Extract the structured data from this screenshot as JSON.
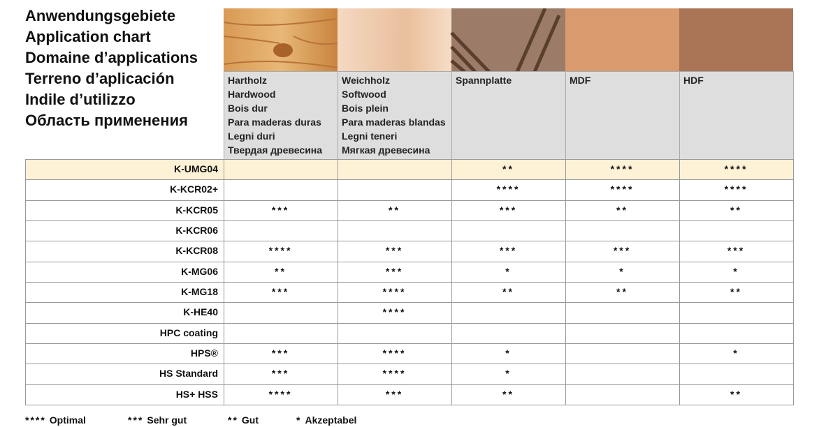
{
  "title_lines": [
    "Anwendungsgebiete",
    "Application chart",
    "Domaine d’applications",
    "Terreno d’aplicación",
    "Indile d’utilizzo",
    "Область применения"
  ],
  "columns": [
    {
      "lines": [
        "Hartholz",
        "Hardwood",
        "Bois dur",
        "Para maderas duras",
        "Legni duri",
        "Твердая древесина"
      ]
    },
    {
      "lines": [
        "Weichholz",
        "Softwood",
        "Bois plein",
        "Para maderas blandas",
        "Legni teneri",
        "Мягкая древесина"
      ]
    },
    {
      "lines": [
        "Spannplatte"
      ]
    },
    {
      "lines": [
        "MDF"
      ]
    },
    {
      "lines": [
        "HDF"
      ]
    }
  ],
  "rows": [
    {
      "name": "K-UMG04",
      "cells": [
        null,
        null,
        "**",
        "****",
        "****"
      ]
    },
    {
      "name": "K-KCR02+",
      "cells": [
        null,
        null,
        "****",
        "****",
        "****"
      ]
    },
    {
      "name": "K-KCR05",
      "cells": [
        "***",
        "**",
        "***",
        "**",
        "**"
      ]
    },
    {
      "name": "K-KCR06",
      "cells": [
        null,
        null,
        null,
        null,
        null
      ]
    },
    {
      "name": "K-KCR08",
      "cells": [
        "****",
        "***",
        "***",
        "***",
        "***"
      ]
    },
    {
      "name": "K-MG06",
      "cells": [
        "**",
        "***",
        "*",
        "*",
        "*"
      ]
    },
    {
      "name": "K-MG18",
      "cells": [
        "***",
        "****",
        "**",
        "**",
        "**"
      ]
    },
    {
      "name": "K-HE40",
      "cells": [
        null,
        "****",
        null,
        null,
        null
      ]
    },
    {
      "name": "HPC coating",
      "cells": [
        null,
        null,
        null,
        null,
        null
      ]
    },
    {
      "name": "HPS®",
      "cells": [
        "***",
        "****",
        "*",
        null,
        "*"
      ]
    },
    {
      "name": "HS Standard",
      "cells": [
        "***",
        "****",
        "*",
        null,
        null
      ]
    },
    {
      "name": "HS+ HSS",
      "cells": [
        "****",
        "***",
        "**",
        null,
        "**"
      ]
    }
  ],
  "legend": [
    {
      "symbol": "****",
      "label": "Optimal"
    },
    {
      "symbol": "***",
      "label": "Sehr gut"
    },
    {
      "symbol": "**",
      "label": "Gut"
    },
    {
      "symbol": "*",
      "label": "Akzeptabel"
    }
  ]
}
